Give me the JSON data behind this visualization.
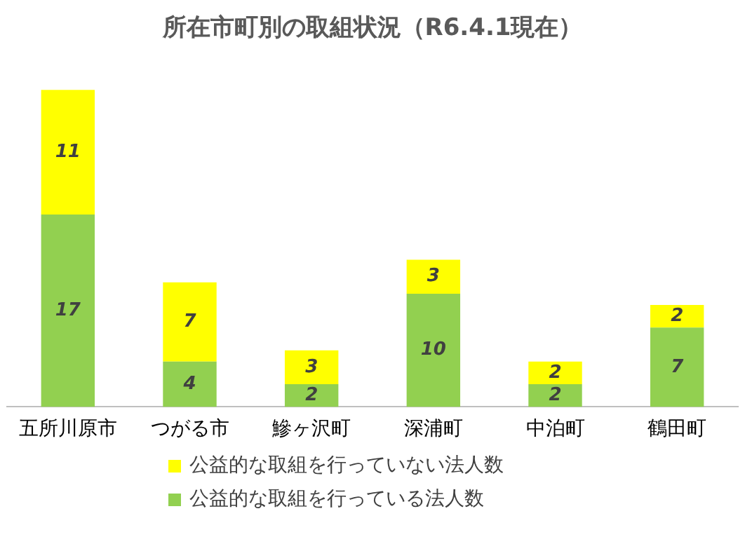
{
  "chart_data": {
    "type": "bar",
    "title": "所在市町別の取組状況（R6.4.1現在）",
    "categories": [
      "五所川原市",
      "つがる市",
      "鰺ヶ沢町",
      "深浦町",
      "中泊町",
      "鶴田町"
    ],
    "stacked": true,
    "data_labels": true,
    "legend": "bottom",
    "grid": false,
    "series": [
      {
        "name": "公益的な取組を行っている法人数",
        "color": "#92d050",
        "values": [
          17,
          4,
          2,
          10,
          2,
          7
        ]
      },
      {
        "name": "公益的な取組を行っていない法人数",
        "color": "#ffff00",
        "values": [
          11,
          7,
          3,
          3,
          2,
          2
        ]
      }
    ]
  }
}
